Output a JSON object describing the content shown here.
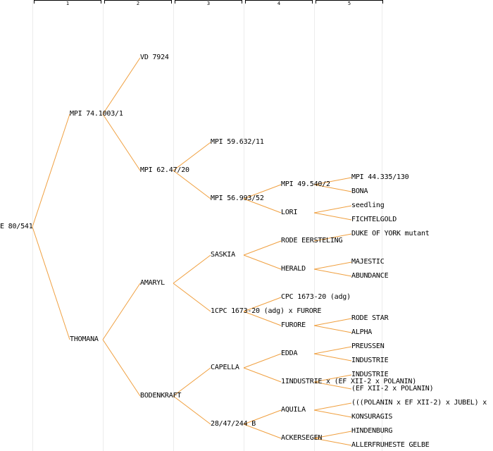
{
  "colors": {
    "edge": "#f0a040",
    "guide": "#ececec",
    "text": "#000000"
  },
  "generations": [
    "1",
    "2",
    "3",
    "4",
    "5"
  ],
  "root": "E 80/541",
  "gen1": {
    "a": "MPI 74.1003/1",
    "b": "THOMANA"
  },
  "gen2": {
    "a": "VD 7924",
    "b": "MPI 62.47/20",
    "c": "AMARYL",
    "d": "BODENKRAFT"
  },
  "gen3": {
    "a": "MPI 59.632/11",
    "b": "MPI 56.993/52",
    "c": "SASKIA",
    "d": "1CPC 1673-20 (adg) x FURORE",
    "e": "CAPELLA",
    "f": "28/47/244 B"
  },
  "gen4": {
    "a": "MPI 49.540/2",
    "b": "LORI",
    "c": "RODE EERSTELING",
    "d": "HERALD",
    "e": "CPC 1673-20 (adg)",
    "f": "FURORE",
    "g": "EDDA",
    "h": "1INDUSTRIE x (EF XII-2 x POLANIN)",
    "i": "AQUILA",
    "j": "ACKERSEGEN"
  },
  "gen5": {
    "a": "MPI 44.335/130",
    "b": "BONA",
    "c": "seedling",
    "d": "FICHTELGOLD",
    "e": "DUKE OF YORK mutant",
    "f": "MAJESTIC",
    "g": "ABUNDANCE",
    "h": "RODE STAR",
    "i": "ALPHA",
    "j": "PREUSSEN",
    "k": "INDUSTRIE",
    "l": "INDUSTRIE",
    "m": "(EF XII-2 x POLANIN)",
    "n": "(((POLANIN x EF XII-2) x JUBEL) x",
    "o": "KONSURAGIS",
    "p": "HINDENBURG",
    "q": "ALLERFRUHESTE GELBE"
  }
}
